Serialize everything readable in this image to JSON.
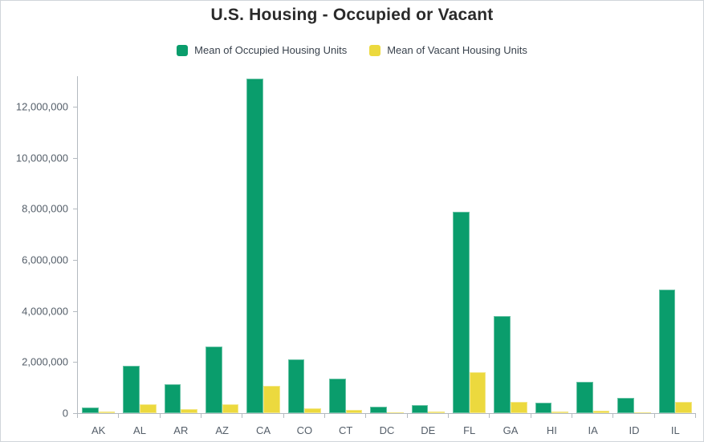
{
  "title": "U.S. Housing - Occupied or Vacant",
  "legend": {
    "items": [
      {
        "label": "Mean of Occupied Housing Units",
        "color": "#0a9d6c"
      },
      {
        "label": "Mean of Vacant Housing Units",
        "color": "#ecd93e"
      }
    ]
  },
  "chart_data": {
    "type": "bar",
    "title": "U.S. Housing - Occupied or Vacant",
    "categories": [
      "AK",
      "AL",
      "AR",
      "AZ",
      "CA",
      "CO",
      "CT",
      "DC",
      "DE",
      "FL",
      "GA",
      "HI",
      "IA",
      "ID",
      "IL"
    ],
    "series": [
      {
        "name": "Mean of Occupied Housing Units",
        "color": "#0a9d6c",
        "values": [
          220000,
          1850000,
          1120000,
          2600000,
          13100000,
          2100000,
          1340000,
          250000,
          320000,
          7900000,
          3810000,
          420000,
          1230000,
          590000,
          4850000
        ]
      },
      {
        "name": "Mean of Vacant Housing Units",
        "color": "#ecd93e",
        "values": [
          60000,
          360000,
          160000,
          360000,
          1060000,
          190000,
          115000,
          30000,
          50000,
          1590000,
          450000,
          55000,
          95000,
          45000,
          450000
        ]
      }
    ],
    "xlabel": "",
    "ylabel": "",
    "ylim": [
      0,
      13200000
    ],
    "yticks": [
      0,
      2000000,
      4000000,
      6000000,
      8000000,
      10000000,
      12000000
    ],
    "ytick_labels": [
      "0",
      "2,000,000",
      "4,000,000",
      "6,000,000",
      "8,000,000",
      "10,000,000",
      "12,000,000"
    ],
    "grid": false,
    "legend_position": "top"
  },
  "colors": {
    "axis_line": "#b4bac0",
    "tick_label": "#545e69",
    "legend_text": "#39424d",
    "title_text": "#2a2a2a",
    "border": "#d0d5da",
    "background": "#ffffff"
  }
}
